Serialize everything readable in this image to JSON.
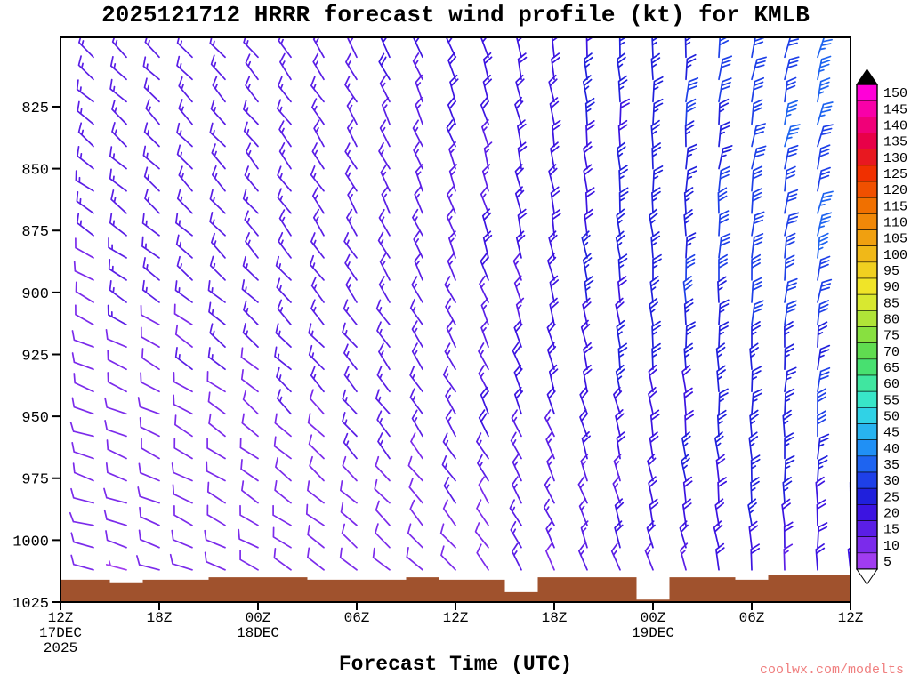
{
  "title": "2025121712 HRRR forecast wind profile (kt) for KMLB",
  "xlabel": "Forecast Time (UTC)",
  "watermark": "coolwx.com/modelts",
  "watermark_color": "#F08080",
  "chart_data": {
    "type": "wind-barb-profile",
    "title": "2025121712 HRRR forecast wind profile (kt) for KMLB",
    "x_axis_label": "Forecast Time (UTC)",
    "x_tick_labels": [
      "12Z",
      "18Z",
      "00Z",
      "06Z",
      "12Z",
      "18Z",
      "00Z",
      "06Z",
      "12Z"
    ],
    "x_date_labels": [
      {
        "index": 0,
        "lines": [
          "17DEC",
          "2025"
        ]
      },
      {
        "index": 2,
        "lines": [
          "18DEC"
        ]
      },
      {
        "index": 6,
        "lines": [
          "19DEC"
        ]
      }
    ],
    "y_ticks": [
      825,
      850,
      875,
      900,
      925,
      950,
      975,
      1000,
      1025
    ],
    "y_axis_units": "hPa",
    "y_top_pressure": 797,
    "y_bottom_pressure": 1025,
    "colorbar": {
      "units": "kt",
      "min": 5,
      "max": 150,
      "step": 5,
      "tick_labels": [
        150,
        145,
        140,
        135,
        130,
        125,
        120,
        115,
        110,
        105,
        100,
        95,
        90,
        85,
        80,
        75,
        70,
        65,
        60,
        55,
        50,
        45,
        40,
        35,
        30,
        25,
        20,
        15,
        10,
        5
      ],
      "colors": [
        "#A03CF0",
        "#7B2BEB",
        "#5A1EE6",
        "#3C14E1",
        "#2020DC",
        "#1E40E8",
        "#1E64F0",
        "#2090F5",
        "#28B4F0",
        "#30D2E6",
        "#38E6C8",
        "#40E6A0",
        "#48E070",
        "#60DC50",
        "#88E040",
        "#B0E438",
        "#D8E830",
        "#F0E428",
        "#F0D020",
        "#F0B818",
        "#F0A010",
        "#F08808",
        "#F07000",
        "#F05000",
        "#F03000",
        "#E81820",
        "#E80048",
        "#F00078",
        "#F800A8",
        "#FF00D8"
      ],
      "over_color": "#000000",
      "under_color": "#FFFFFF"
    },
    "grid": {
      "times_hours": [
        0,
        6,
        12,
        18,
        24,
        30,
        36,
        42,
        48
      ],
      "pressures": [
        825,
        850,
        875,
        900,
        925,
        950,
        975,
        1000,
        1025
      ],
      "speed_kt": [
        [
          15,
          15,
          15,
          15,
          20,
          20,
          25,
          30,
          35
        ],
        [
          15,
          15,
          15,
          15,
          15,
          20,
          25,
          30,
          35
        ],
        [
          15,
          15,
          15,
          15,
          15,
          20,
          25,
          30,
          35
        ],
        [
          10,
          15,
          15,
          15,
          15,
          20,
          25,
          30,
          30
        ],
        [
          10,
          10,
          15,
          15,
          15,
          20,
          25,
          25,
          30
        ],
        [
          10,
          10,
          10,
          15,
          15,
          20,
          20,
          25,
          30
        ],
        [
          10,
          10,
          10,
          10,
          15,
          15,
          20,
          25,
          25
        ],
        [
          10,
          10,
          10,
          10,
          10,
          15,
          20,
          20,
          20
        ],
        [
          5,
          5,
          10,
          10,
          10,
          10,
          15,
          15,
          15
        ]
      ],
      "dir_deg": [
        [
          310,
          315,
          320,
          330,
          340,
          350,
          0,
          10,
          15
        ],
        [
          305,
          315,
          320,
          330,
          340,
          350,
          0,
          10,
          15
        ],
        [
          300,
          310,
          320,
          330,
          340,
          350,
          355,
          5,
          15
        ],
        [
          295,
          305,
          315,
          325,
          335,
          345,
          355,
          5,
          10
        ],
        [
          290,
          300,
          310,
          320,
          330,
          345,
          355,
          0,
          10
        ],
        [
          285,
          295,
          310,
          320,
          330,
          340,
          350,
          0,
          5
        ],
        [
          285,
          295,
          305,
          315,
          325,
          335,
          350,
          355,
          5
        ],
        [
          280,
          290,
          300,
          310,
          320,
          335,
          345,
          355,
          0
        ],
        [
          275,
          285,
          295,
          305,
          315,
          330,
          340,
          350,
          355
        ]
      ]
    },
    "barb_density": {
      "hours_step": 2,
      "pressure_top": 805,
      "pressure_step": 9,
      "rows": 24
    },
    "surface_pressure": [
      1016,
      1016,
      1017,
      1016,
      1016,
      1015,
      1015,
      1015,
      1016,
      1016,
      1016,
      1015,
      1016,
      1016,
      1021,
      1015,
      1015,
      1015,
      1024,
      1015,
      1015,
      1016,
      1014,
      1014,
      1014
    ],
    "surface_color": "#A0522D"
  }
}
